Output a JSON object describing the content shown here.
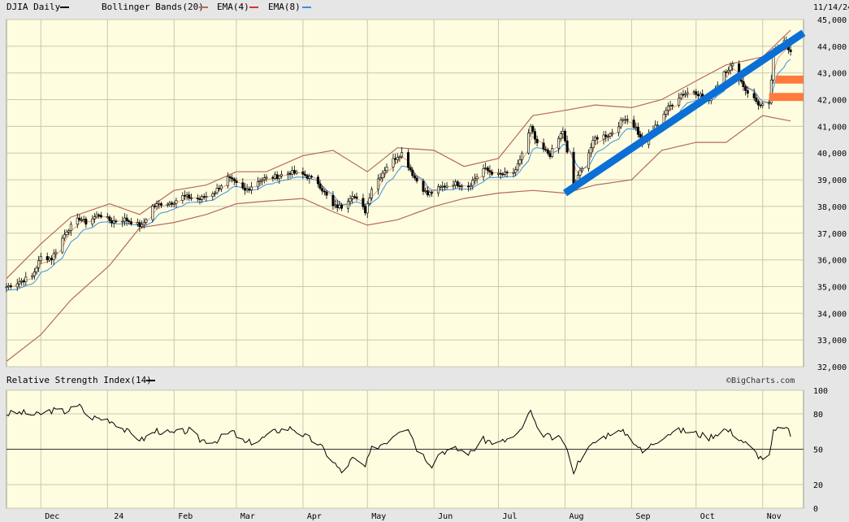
{
  "header": {
    "symbol_label": "DJIA Daily",
    "bb_label": "Bollinger Bands(20)",
    "ema4_label": "EMA(4)",
    "ema8_label": "EMA(8)",
    "date_label": "11/14/24"
  },
  "rsi_header": {
    "label": "Relative Strength Index(14)",
    "credit": "©BigCharts.com"
  },
  "colors": {
    "background": "#e6e6e6",
    "plot_bg": "#fffde0",
    "grid": "#c8c8b0",
    "candle": "#000000",
    "bollinger": "#b56a5a",
    "ema4": "#d03a2a",
    "ema8": "#3f8ee0",
    "trendline": "#0b6fd6",
    "support_zone": "#ff7a3d",
    "rsi_line": "#000000"
  },
  "chart_data": [
    {
      "type": "candlestick",
      "title": "DJIA Daily",
      "ylim": [
        32000,
        45000
      ],
      "y_ticks": [
        "32,000",
        "33,000",
        "34,000",
        "35,000",
        "36,000",
        "37,000",
        "38,000",
        "39,000",
        "40,000",
        "41,000",
        "42,000",
        "43,000",
        "44,000",
        "45,000"
      ],
      "x_ticks": [
        "Dec",
        "24",
        "Feb",
        "Mar",
        "Apr",
        "May",
        "Jun",
        "Jul",
        "Aug",
        "Sep",
        "Oct",
        "Nov"
      ],
      "close_series": [
        [
          "2023-11-15",
          34990
        ],
        [
          "2023-11-20",
          35150
        ],
        [
          "2023-11-27",
          35390
        ],
        [
          "2023-12-01",
          36100
        ],
        [
          "2023-12-06",
          36050
        ],
        [
          "2023-12-13",
          37100
        ],
        [
          "2023-12-19",
          37560
        ],
        [
          "2023-12-22",
          37390
        ],
        [
          "2023-12-28",
          37710
        ],
        [
          "2024-01-03",
          37430
        ],
        [
          "2024-01-09",
          37520
        ],
        [
          "2024-01-17",
          37260
        ],
        [
          "2024-01-22",
          38000
        ],
        [
          "2024-01-26",
          38110
        ],
        [
          "2024-01-31",
          38150
        ],
        [
          "2024-02-05",
          38380
        ],
        [
          "2024-02-13",
          38270
        ],
        [
          "2024-02-20",
          38560
        ],
        [
          "2024-02-26",
          39070
        ],
        [
          "2024-03-05",
          38580
        ],
        [
          "2024-03-12",
          39010
        ],
        [
          "2024-03-19",
          39110
        ],
        [
          "2024-03-26",
          39280
        ],
        [
          "2024-04-02",
          39170
        ],
        [
          "2024-04-08",
          38890
        ],
        [
          "2024-04-15",
          38000
        ],
        [
          "2024-04-19",
          37990
        ],
        [
          "2024-04-24",
          38460
        ],
        [
          "2024-04-30",
          37820
        ],
        [
          "2024-05-03",
          38680
        ],
        [
          "2024-05-10",
          39510
        ],
        [
          "2024-05-15",
          39900
        ],
        [
          "2024-05-17",
          40000
        ],
        [
          "2024-05-23",
          39070
        ],
        [
          "2024-05-29",
          38440
        ],
        [
          "2024-06-04",
          38710
        ],
        [
          "2024-06-10",
          38870
        ],
        [
          "2024-06-17",
          38780
        ],
        [
          "2024-06-24",
          39410
        ],
        [
          "2024-07-01",
          39170
        ],
        [
          "2024-07-09",
          39290
        ],
        [
          "2024-07-16",
          40950
        ],
        [
          "2024-07-19",
          40290
        ],
        [
          "2024-07-25",
          39940
        ],
        [
          "2024-07-31",
          40840
        ],
        [
          "2024-08-05",
          38700
        ],
        [
          "2024-08-09",
          39500
        ],
        [
          "2024-08-15",
          40560
        ],
        [
          "2024-08-22",
          40710
        ],
        [
          "2024-08-29",
          41340
        ],
        [
          "2024-09-03",
          40940
        ],
        [
          "2024-09-06",
          40350
        ],
        [
          "2024-09-11",
          40860
        ],
        [
          "2024-09-17",
          41610
        ],
        [
          "2024-09-24",
          42200
        ],
        [
          "2024-09-30",
          42330
        ],
        [
          "2024-10-07",
          41950
        ],
        [
          "2024-10-14",
          43060
        ],
        [
          "2024-10-18",
          43280
        ],
        [
          "2024-10-24",
          42370
        ],
        [
          "2024-10-31",
          41760
        ],
        [
          "2024-11-04",
          41790
        ],
        [
          "2024-11-06",
          43730
        ],
        [
          "2024-11-11",
          44290
        ],
        [
          "2024-11-14",
          43750
        ]
      ],
      "bollinger_band_20": {
        "upper": [
          [
            "2023-11-15",
            35300
          ],
          [
            "2023-12-01",
            36600
          ],
          [
            "2023-12-15",
            37600
          ],
          [
            "2024-01-02",
            38100
          ],
          [
            "2024-01-16",
            37700
          ],
          [
            "2024-02-01",
            38600
          ],
          [
            "2024-02-16",
            38800
          ],
          [
            "2024-03-01",
            39300
          ],
          [
            "2024-03-15",
            39300
          ],
          [
            "2024-04-01",
            39900
          ],
          [
            "2024-04-15",
            40100
          ],
          [
            "2024-05-01",
            39300
          ],
          [
            "2024-05-15",
            40200
          ],
          [
            "2024-06-01",
            40100
          ],
          [
            "2024-06-15",
            39500
          ],
          [
            "2024-07-01",
            39800
          ],
          [
            "2024-07-17",
            41400
          ],
          [
            "2024-08-01",
            41600
          ],
          [
            "2024-08-15",
            41800
          ],
          [
            "2024-09-01",
            41700
          ],
          [
            "2024-09-15",
            42000
          ],
          [
            "2024-10-01",
            42700
          ],
          [
            "2024-10-15",
            43300
          ],
          [
            "2024-11-01",
            43600
          ],
          [
            "2024-11-14",
            44600
          ]
        ],
        "lower": [
          [
            "2023-11-15",
            32200
          ],
          [
            "2023-12-01",
            33200
          ],
          [
            "2023-12-15",
            34500
          ],
          [
            "2024-01-02",
            35800
          ],
          [
            "2024-01-16",
            37200
          ],
          [
            "2024-02-01",
            37400
          ],
          [
            "2024-02-16",
            37700
          ],
          [
            "2024-03-01",
            38100
          ],
          [
            "2024-03-15",
            38200
          ],
          [
            "2024-04-01",
            38300
          ],
          [
            "2024-04-15",
            37800
          ],
          [
            "2024-05-01",
            37300
          ],
          [
            "2024-05-15",
            37500
          ],
          [
            "2024-06-01",
            38000
          ],
          [
            "2024-06-15",
            38300
          ],
          [
            "2024-07-01",
            38500
          ],
          [
            "2024-07-17",
            38600
          ],
          [
            "2024-08-01",
            38500
          ],
          [
            "2024-08-15",
            38800
          ],
          [
            "2024-09-01",
            39000
          ],
          [
            "2024-09-15",
            40100
          ],
          [
            "2024-10-01",
            40400
          ],
          [
            "2024-10-15",
            40400
          ],
          [
            "2024-11-01",
            41400
          ],
          [
            "2024-11-14",
            41200
          ]
        ]
      },
      "annotations": {
        "uptrend_line": [
          [
            "2024-08-01",
            38500
          ],
          [
            "2024-11-20",
            44500
          ]
        ],
        "support_zones": [
          {
            "y_from": 42600,
            "y_to": 42900,
            "x_from": "2024-11-07",
            "x_to": "2024-11-20"
          },
          {
            "y_from": 41950,
            "y_to": 42250,
            "x_from": "2024-11-04",
            "x_to": "2024-11-20"
          }
        ]
      }
    },
    {
      "type": "line",
      "title": "Relative Strength Index(14)",
      "ylim": [
        0,
        100
      ],
      "y_ticks": [
        0,
        20,
        50,
        80,
        100
      ],
      "reference_line": 50,
      "series": [
        {
          "values": [
            [
              "2023-11-15",
              80
            ],
            [
              "2023-11-22",
              81
            ],
            [
              "2023-11-29",
              79
            ],
            [
              "2023-12-06",
              83
            ],
            [
              "2023-12-12",
              82
            ],
            [
              "2023-12-20",
              87
            ],
            [
              "2023-12-22",
              78
            ],
            [
              "2024-01-02",
              75
            ],
            [
              "2024-01-05",
              72
            ],
            [
              "2024-01-10",
              65
            ],
            [
              "2024-01-17",
              58
            ],
            [
              "2024-01-24",
              66
            ],
            [
              "2024-01-31",
              63
            ],
            [
              "2024-02-08",
              66
            ],
            [
              "2024-02-13",
              58
            ],
            [
              "2024-02-20",
              57
            ],
            [
              "2024-02-28",
              65
            ],
            [
              "2024-03-05",
              55
            ],
            [
              "2024-03-12",
              58
            ],
            [
              "2024-03-20",
              66
            ],
            [
              "2024-03-27",
              68
            ],
            [
              "2024-04-02",
              61
            ],
            [
              "2024-04-08",
              55
            ],
            [
              "2024-04-15",
              40
            ],
            [
              "2024-04-19",
              30
            ],
            [
              "2024-04-24",
              42
            ],
            [
              "2024-04-30",
              35
            ],
            [
              "2024-05-03",
              50
            ],
            [
              "2024-05-10",
              57
            ],
            [
              "2024-05-16",
              67
            ],
            [
              "2024-05-20",
              69
            ],
            [
              "2024-05-24",
              51
            ],
            [
              "2024-05-31",
              37
            ],
            [
              "2024-06-04",
              48
            ],
            [
              "2024-06-11",
              50
            ],
            [
              "2024-06-18",
              47
            ],
            [
              "2024-06-24",
              58
            ],
            [
              "2024-07-01",
              55
            ],
            [
              "2024-07-10",
              62
            ],
            [
              "2024-07-16",
              82
            ],
            [
              "2024-07-19",
              66
            ],
            [
              "2024-07-25",
              60
            ],
            [
              "2024-07-31",
              58
            ],
            [
              "2024-08-05",
              32
            ],
            [
              "2024-08-09",
              45
            ],
            [
              "2024-08-15",
              56
            ],
            [
              "2024-08-23",
              65
            ],
            [
              "2024-08-29",
              64
            ],
            [
              "2024-09-03",
              55
            ],
            [
              "2024-09-06",
              47
            ],
            [
              "2024-09-11",
              55
            ],
            [
              "2024-09-17",
              63
            ],
            [
              "2024-09-24",
              66
            ],
            [
              "2024-09-30",
              64
            ],
            [
              "2024-10-07",
              60
            ],
            [
              "2024-10-14",
              67
            ],
            [
              "2024-10-18",
              64
            ],
            [
              "2024-10-24",
              55
            ],
            [
              "2024-10-31",
              43
            ],
            [
              "2024-11-04",
              43
            ],
            [
              "2024-11-06",
              64
            ],
            [
              "2024-11-11",
              70
            ],
            [
              "2024-11-14",
              62
            ]
          ]
        }
      ]
    }
  ]
}
